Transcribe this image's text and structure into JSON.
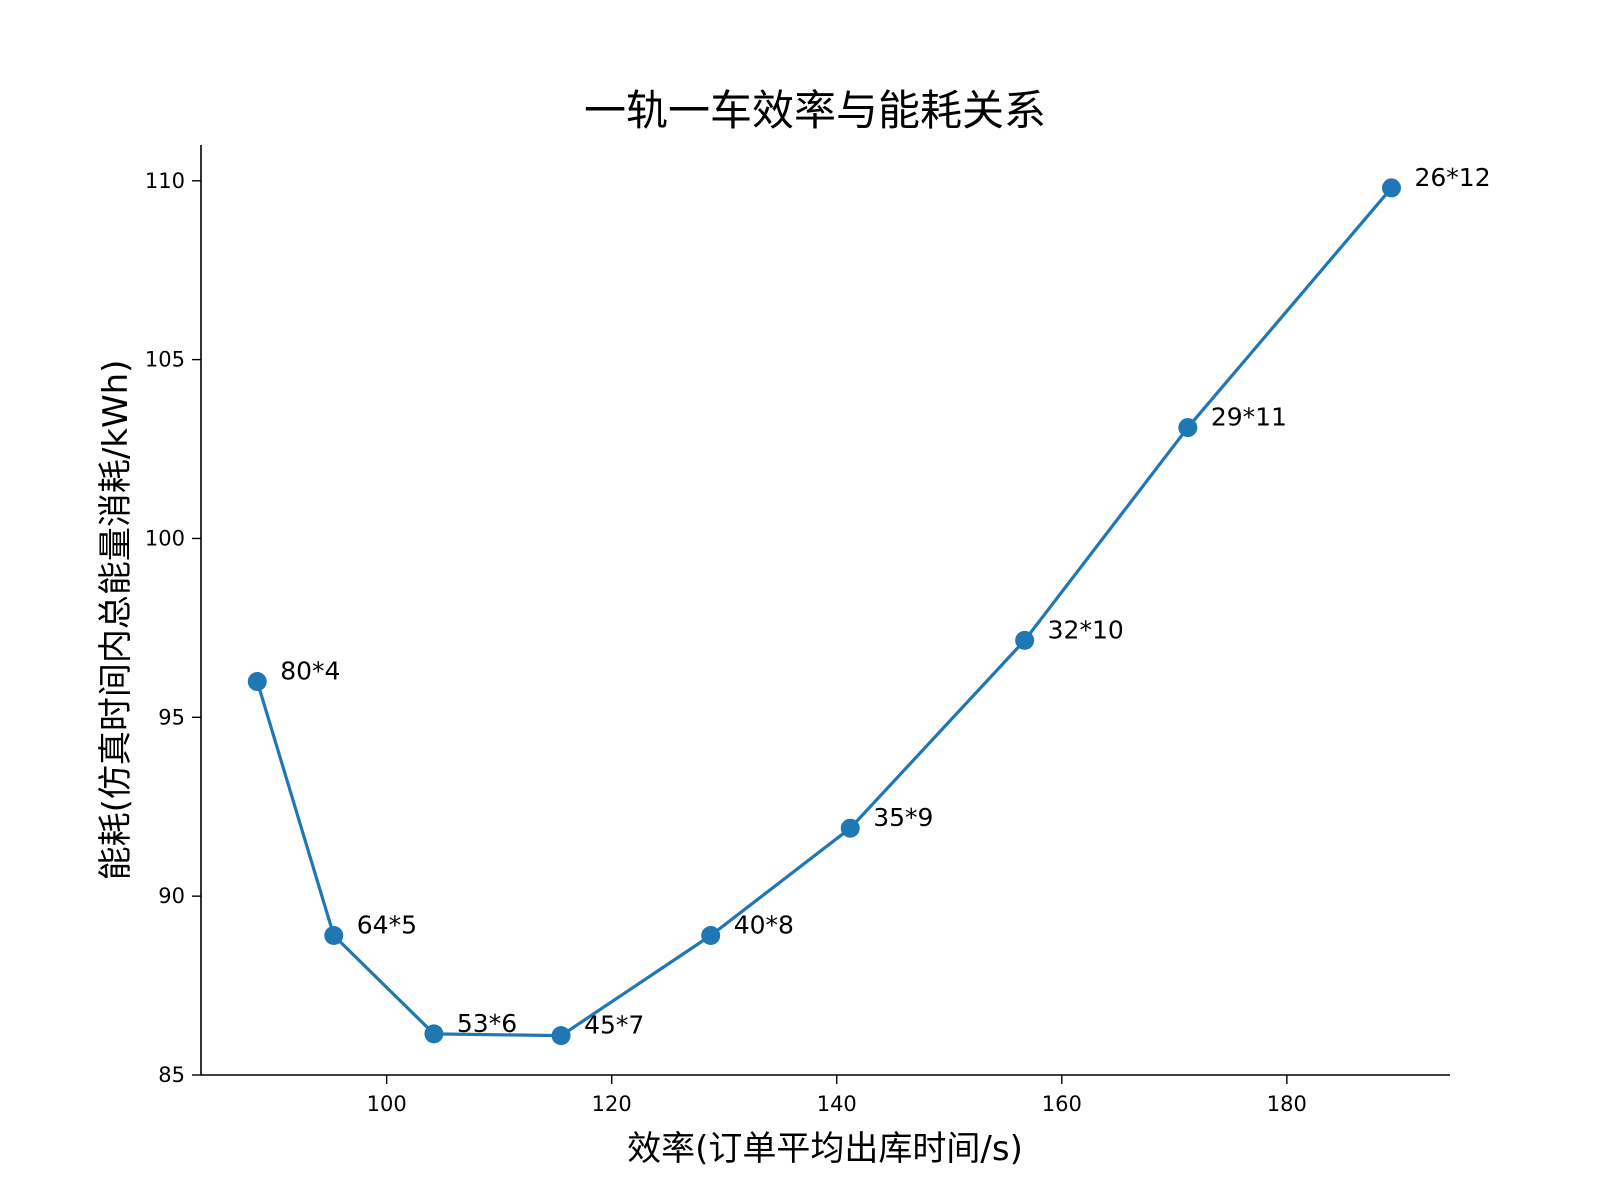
{
  "chart_data": {
    "type": "line",
    "title": "一轨一车效率与能耗关系",
    "xlabel": "效率(订单平均出库时间/s)",
    "ylabel": "能耗(仿真时间内总能量消耗/kWh)",
    "xlim": [
      83.5,
      194.5
    ],
    "ylim": [
      85,
      111
    ],
    "xticks": [
      100,
      120,
      140,
      160,
      180
    ],
    "yticks": [
      85,
      90,
      95,
      100,
      105,
      110
    ],
    "grid": false,
    "color": "#1f77b4",
    "points": [
      {
        "x": 88.5,
        "y": 96.0,
        "label": "80*4"
      },
      {
        "x": 95.3,
        "y": 88.9,
        "label": "64*5"
      },
      {
        "x": 104.2,
        "y": 86.15,
        "label": "53*6"
      },
      {
        "x": 115.5,
        "y": 86.1,
        "label": "45*7"
      },
      {
        "x": 128.8,
        "y": 88.9,
        "label": "40*8"
      },
      {
        "x": 141.2,
        "y": 91.9,
        "label": "35*9"
      },
      {
        "x": 156.7,
        "y": 97.15,
        "label": "32*10"
      },
      {
        "x": 171.2,
        "y": 103.1,
        "label": "29*11"
      },
      {
        "x": 189.3,
        "y": 109.8,
        "label": "26*12"
      }
    ]
  }
}
